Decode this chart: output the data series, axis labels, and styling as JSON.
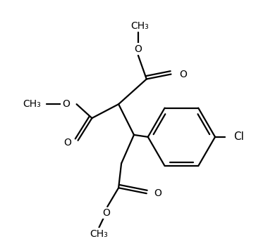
{
  "bg_color": "#ffffff",
  "line_color": "#000000",
  "line_width": 1.6,
  "font_size": 10,
  "figsize": [
    3.63,
    3.5
  ],
  "dpi": 100,
  "Cl_label": "Cl",
  "O_label": "O",
  "CH3_label": "CH₃"
}
